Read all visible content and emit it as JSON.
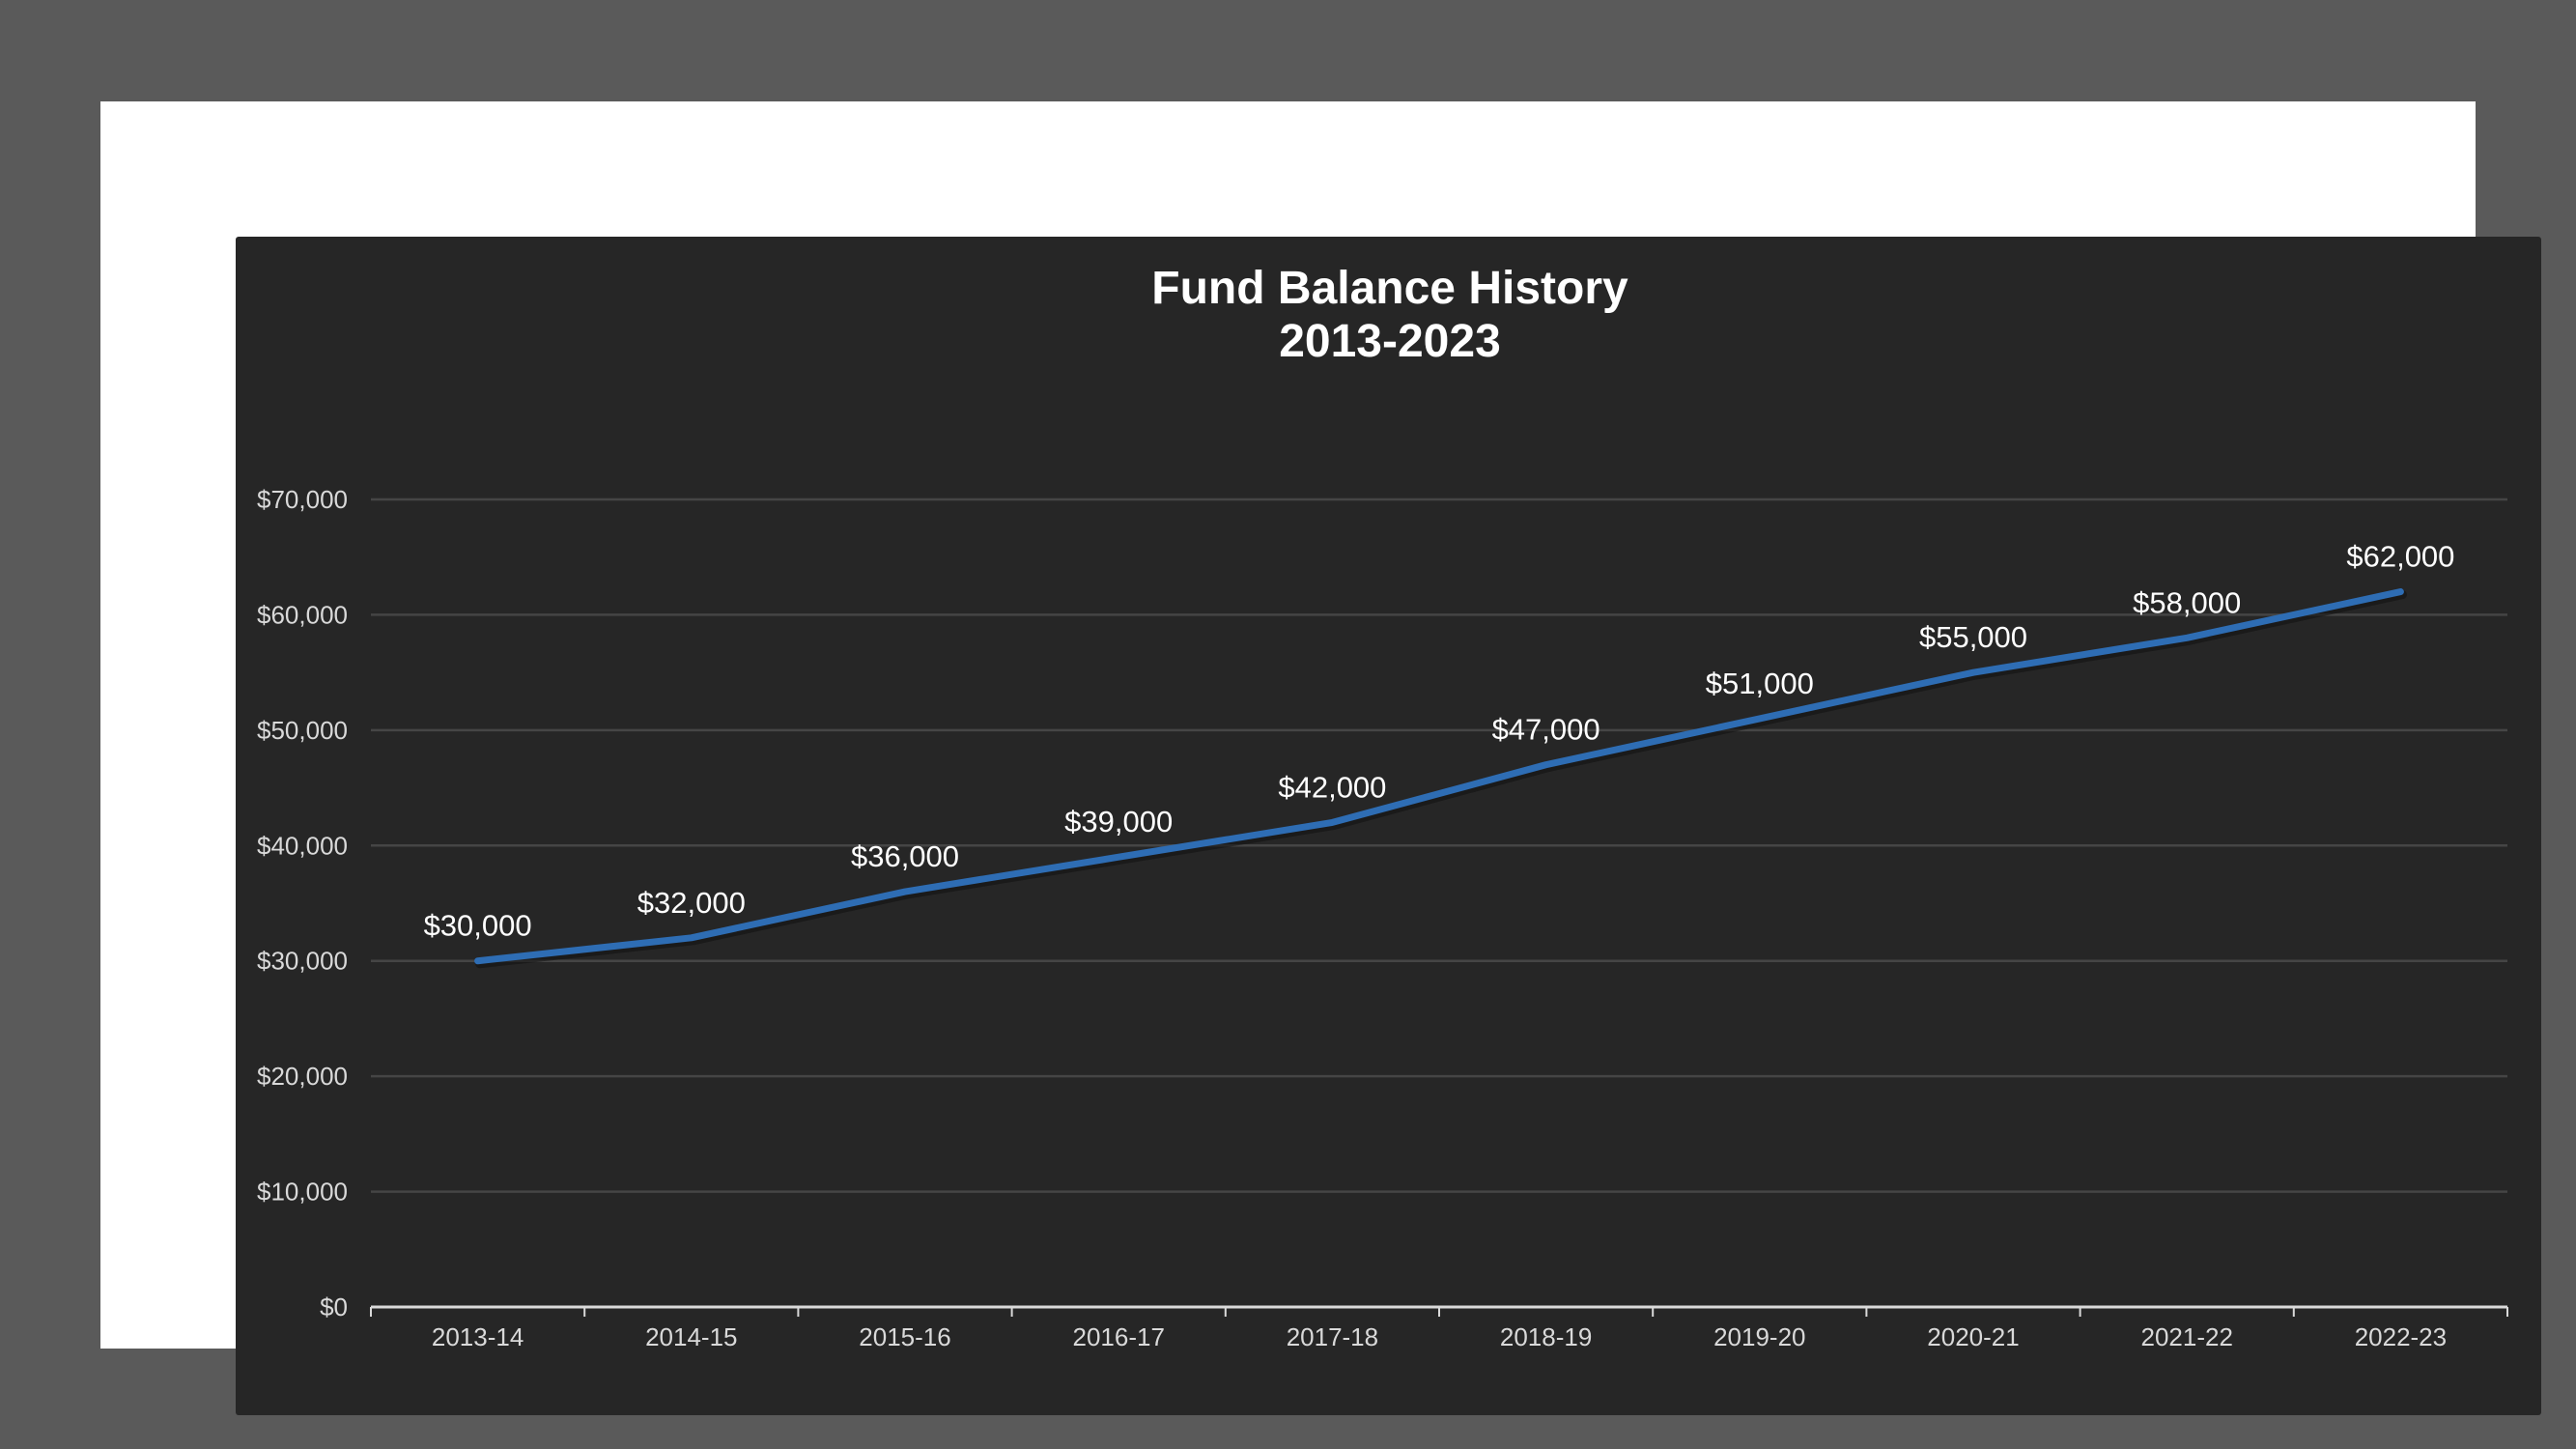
{
  "colors": {
    "page_background": "#5a5a5a",
    "frame": "#ffffff",
    "panel": "#262626",
    "line": "#2e6db4",
    "gridline": "#454545",
    "axis": "#d9d9d9",
    "text": "#ffffff"
  },
  "chart_data": {
    "type": "line",
    "title": [
      "Fund Balance History",
      "2013-2023"
    ],
    "xlabel": "",
    "ylabel": "",
    "categories": [
      "2013-14",
      "2014-15",
      "2015-16",
      "2016-17",
      "2017-18",
      "2018-19",
      "2019-20",
      "2020-21",
      "2021-22",
      "2022-23"
    ],
    "series": [
      {
        "values": [
          30000,
          32000,
          36000,
          39000,
          42000,
          47000,
          51000,
          55000,
          58000,
          62000
        ],
        "data_labels": [
          "$30,000",
          "$32,000",
          "$36,000",
          "$39,000",
          "$42,000",
          "$47,000",
          "$51,000",
          "$55,000",
          "$58,000",
          "$62,000"
        ]
      }
    ],
    "ylim": [
      0,
      70000
    ],
    "yticks": [
      0,
      10000,
      20000,
      30000,
      40000,
      50000,
      60000,
      70000
    ],
    "ytick_labels": [
      "$0",
      "$10,000",
      "$20,000",
      "$30,000",
      "$40,000",
      "$50,000",
      "$60,000",
      "$70,000"
    ],
    "grid": "horizontal",
    "legend": "none"
  }
}
